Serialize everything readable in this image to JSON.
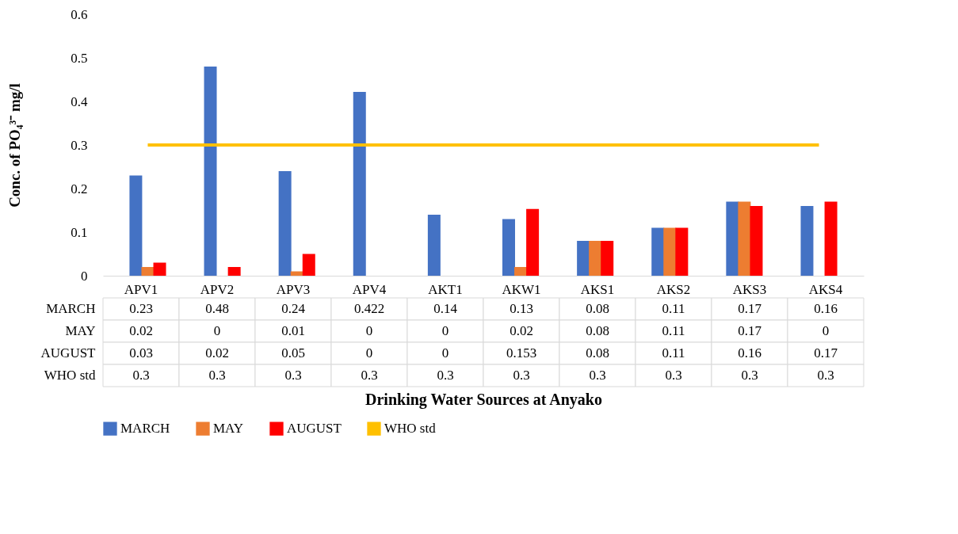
{
  "chart_data": {
    "type": "bar",
    "annotations": [
      "Drinking Water Sources at Anyako"
    ],
    "ylabel": "Conc. of PO₄³⁻ mg/l",
    "categories": [
      "APV1",
      "APV2",
      "APV3",
      "APV4",
      "AKT1",
      "AKW1",
      "AKS1",
      "AKS2",
      "AKS3",
      "AKS4"
    ],
    "series": [
      {
        "name": "MARCH",
        "color": "#4472c4",
        "values": [
          0.23,
          0.48,
          0.24,
          0.422,
          0.14,
          0.13,
          0.08,
          0.11,
          0.17,
          0.16
        ]
      },
      {
        "name": "MAY",
        "color": "#ed7d31",
        "values": [
          0.02,
          0,
          0.01,
          0,
          0,
          0.02,
          0.08,
          0.11,
          0.17,
          0
        ]
      },
      {
        "name": "AUGUST",
        "color": "#ff0000",
        "values": [
          0.03,
          0.02,
          0.05,
          0,
          0,
          0.153,
          0.08,
          0.11,
          0.16,
          0.17
        ]
      },
      {
        "name": "WHO std",
        "type": "line",
        "color": "#ffc000",
        "values": [
          0.3,
          0.3,
          0.3,
          0.3,
          0.3,
          0.3,
          0.3,
          0.3,
          0.3,
          0.3
        ]
      }
    ],
    "ylim": [
      0,
      0.6
    ],
    "yticks": [
      0,
      0.1,
      0.2,
      0.3,
      0.4,
      0.5,
      0.6
    ],
    "grid": false,
    "legend": "bottom",
    "data_labels": true
  }
}
